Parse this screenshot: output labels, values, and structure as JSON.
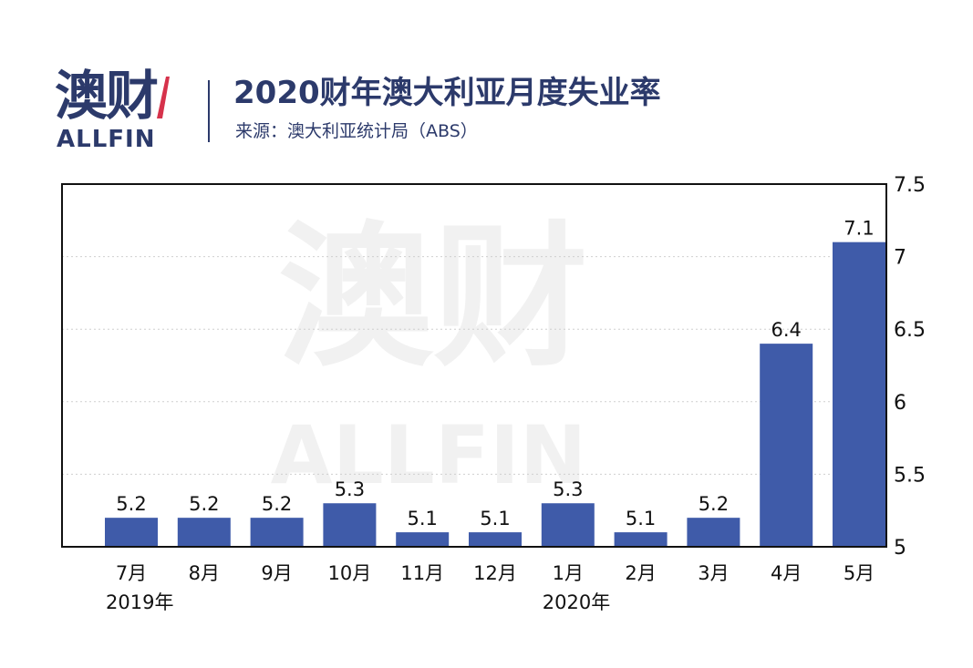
{
  "logo": {
    "cn": "澳财",
    "en": "ALLFIN",
    "mark_color": "#d6324b"
  },
  "header": {
    "title": "2020财年澳大利亚月度失业率",
    "subtitle": "来源：澳大利亚统计局（ABS）"
  },
  "watermark": {
    "cn": "澳财",
    "en": "ALLFIN"
  },
  "chart_data": {
    "type": "bar",
    "categories": [
      "7月",
      "8月",
      "9月",
      "10月",
      "11月",
      "12月",
      "1月",
      "2月",
      "3月",
      "4月",
      "5月"
    ],
    "year_labels": [
      {
        "category_index": 0,
        "label": "2019年"
      },
      {
        "category_index": 6,
        "label": "2020年"
      }
    ],
    "values": [
      5.2,
      5.2,
      5.2,
      5.3,
      5.1,
      5.1,
      5.3,
      5.1,
      5.2,
      6.4,
      7.1
    ],
    "value_labels": [
      "5.2",
      "5.2",
      "5.2",
      "5.3",
      "5.1",
      "5.1",
      "5.3",
      "5.1",
      "5.2",
      "6.4",
      "7.1"
    ],
    "y_ticks": [
      "5",
      "5.5",
      "6",
      "6.5",
      "7",
      "7.5"
    ],
    "ylim": [
      5,
      7.5
    ],
    "y_axis_side": "right",
    "grid": true,
    "bar_color": "#3f5ba9",
    "legend": "none"
  }
}
